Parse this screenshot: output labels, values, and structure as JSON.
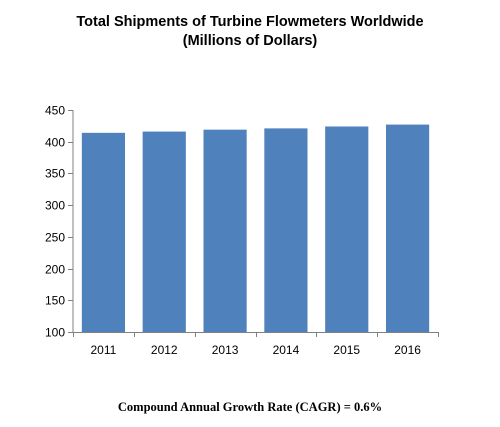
{
  "chart_data": {
    "type": "bar",
    "title": "Total Shipments of Turbine Flowmeters Worldwide",
    "subtitle": "(Millions of Dollars)",
    "categories": [
      "2011",
      "2012",
      "2013",
      "2014",
      "2015",
      "2016"
    ],
    "values": [
      414,
      416,
      419,
      421,
      424,
      427
    ],
    "ylim": [
      100,
      450
    ],
    "yticks": [
      100,
      150,
      200,
      250,
      300,
      350,
      400,
      450
    ],
    "xlabel": "",
    "ylabel": "",
    "grid": false,
    "bar_color": "#4F81BD",
    "annotation": "Compound Annual Growth Rate (CAGR) = 0.6%"
  }
}
